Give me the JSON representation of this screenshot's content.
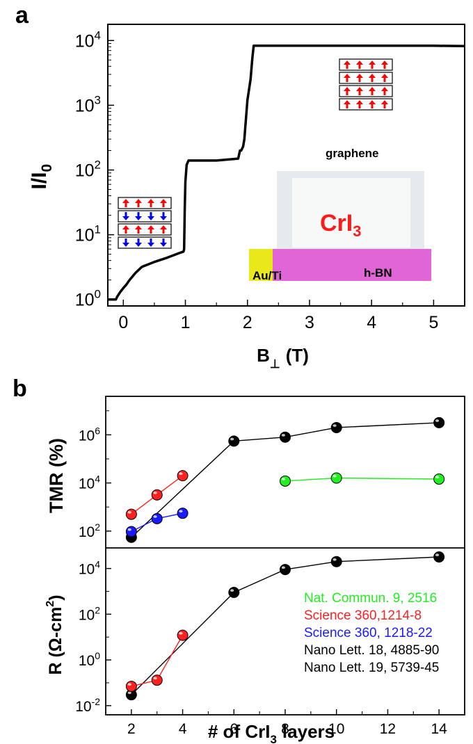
{
  "chart_data": [
    {
      "panel_label": "a",
      "type": "line",
      "title": "",
      "xlabel": "B",
      "xlabel_sub": "⊥",
      "xlabel_unit": "(T)",
      "ylabel": "I/I",
      "ylabel_sub": "0",
      "xlim": [
        -0.25,
        5.5
      ],
      "ylim_log10": [
        -0.1,
        4.25
      ],
      "y_scale": "log",
      "x_ticks": [
        0,
        1,
        2,
        3,
        4,
        5
      ],
      "y_ticks": [
        {
          "base": "10",
          "exp": "0",
          "log": 0
        },
        {
          "base": "10",
          "exp": "1",
          "log": 1
        },
        {
          "base": "10",
          "exp": "2",
          "log": 2
        },
        {
          "base": "10",
          "exp": "3",
          "log": 3
        },
        {
          "base": "10",
          "exp": "4",
          "log": 4
        }
      ],
      "series": [
        {
          "color": "#000000",
          "x": [
            -0.25,
            -0.12,
            -0.1,
            -0.05,
            0,
            0.05,
            0.1,
            0.2,
            0.3,
            0.5,
            0.7,
            0.9,
            0.97,
            0.98,
            0.99,
            1.0,
            1.02,
            1.05,
            1.2,
            1.5,
            1.85,
            1.88,
            1.9,
            1.93,
            1.95,
            2.0,
            2.05,
            2.08,
            2.1,
            3.0,
            4.0,
            5.0,
            5.5
          ],
          "y": [
            1.0,
            1.0,
            1.1,
            1.3,
            1.5,
            1.7,
            2.0,
            2.6,
            3.2,
            3.8,
            4.4,
            5.2,
            5.5,
            6.0,
            25,
            65,
            120,
            140,
            140,
            140,
            150,
            200,
            200,
            230,
            300,
            1200,
            2500,
            5500,
            8300,
            8300,
            8300,
            8300,
            8200
          ]
        }
      ],
      "annotations": {
        "layer_label": "graphene",
        "material": "CrI",
        "material_sub": "3",
        "substrate": "h-BN",
        "contact": "Au/Ti",
        "spin_state_high_field": [
          "up",
          "up",
          "up",
          "up"
        ],
        "spin_state_low_field": [
          "up",
          "down",
          "up",
          "down"
        ],
        "spin_up_color": "#ff0000",
        "spin_down_color": "#0000ff"
      }
    },
    {
      "panel_label": "b",
      "type": "scatter",
      "subplot": "top",
      "ylabel": "TMR (%)",
      "y_scale": "log",
      "ylim_log10": [
        1.3,
        7.6
      ],
      "y_ticks": [
        {
          "base": "10",
          "exp": "2",
          "log": 2
        },
        {
          "base": "10",
          "exp": "4",
          "log": 4
        },
        {
          "base": "10",
          "exp": "6",
          "log": 6
        }
      ],
      "series": [
        {
          "name": "Nano Lett. 18, 4885-90 / Nano Lett. 19, 5739-45",
          "color": "#000000",
          "x": [
            2,
            6,
            8,
            10,
            14
          ],
          "y": [
            55,
            550000,
            800000,
            2000000,
            3200000
          ]
        },
        {
          "name": "Science 360,1214-8",
          "color": "#ff2020",
          "x": [
            2,
            3,
            4
          ],
          "y": [
            500,
            3200,
            20000
          ]
        },
        {
          "name": "Science 360, 1218-22",
          "color": "#1a1aff",
          "x": [
            2,
            3,
            4
          ],
          "y": [
            95,
            330,
            550
          ]
        },
        {
          "name": "Nat. Commun. 9, 2516",
          "color": "#22ee22",
          "x": [
            8,
            10,
            14
          ],
          "y": [
            12000,
            16000,
            14500
          ]
        }
      ]
    },
    {
      "panel_label": "b",
      "type": "scatter",
      "subplot": "bottom",
      "ylabel": "R (Ω-cm",
      "ylabel_sup": "2",
      "ylabel_close": ")",
      "xlabel": "# of CrI",
      "xlabel_sub": "3",
      "xlabel_tail": "layers",
      "y_scale": "log",
      "xlim": [
        1.0,
        15.0
      ],
      "ylim_log10": [
        -2.4,
        4.9
      ],
      "x_ticks": [
        2,
        4,
        6,
        8,
        10,
        12,
        14
      ],
      "y_ticks": [
        {
          "base": "10",
          "exp": "-2",
          "log": -2
        },
        {
          "base": "10",
          "exp": "0",
          "log": 0
        },
        {
          "base": "10",
          "exp": "2",
          "log": 2
        },
        {
          "base": "10",
          "exp": "4",
          "log": 4
        }
      ],
      "series": [
        {
          "color": "#000000",
          "x": [
            2,
            6,
            8,
            10,
            14
          ],
          "y": [
            0.03,
            900,
            9000,
            20000,
            32000
          ]
        },
        {
          "color": "#ff2020",
          "x": [
            2,
            3,
            4
          ],
          "y": [
            0.07,
            0.13,
            12
          ]
        }
      ],
      "legend": {
        "placement": "bottom-right",
        "entries": [
          {
            "label": "Nat. Commun. 9, 2516",
            "color": "#22ee22"
          },
          {
            "label": "Science 360,1214-8",
            "color": "#ff2020"
          },
          {
            "label": "Science 360, 1218-22",
            "color": "#1a1aff"
          },
          {
            "label": "Nano Lett. 18, 4885-90",
            "color": "#000000"
          },
          {
            "label": "Nano Lett. 19, 5739-45",
            "color": "#000000"
          }
        ]
      }
    }
  ]
}
